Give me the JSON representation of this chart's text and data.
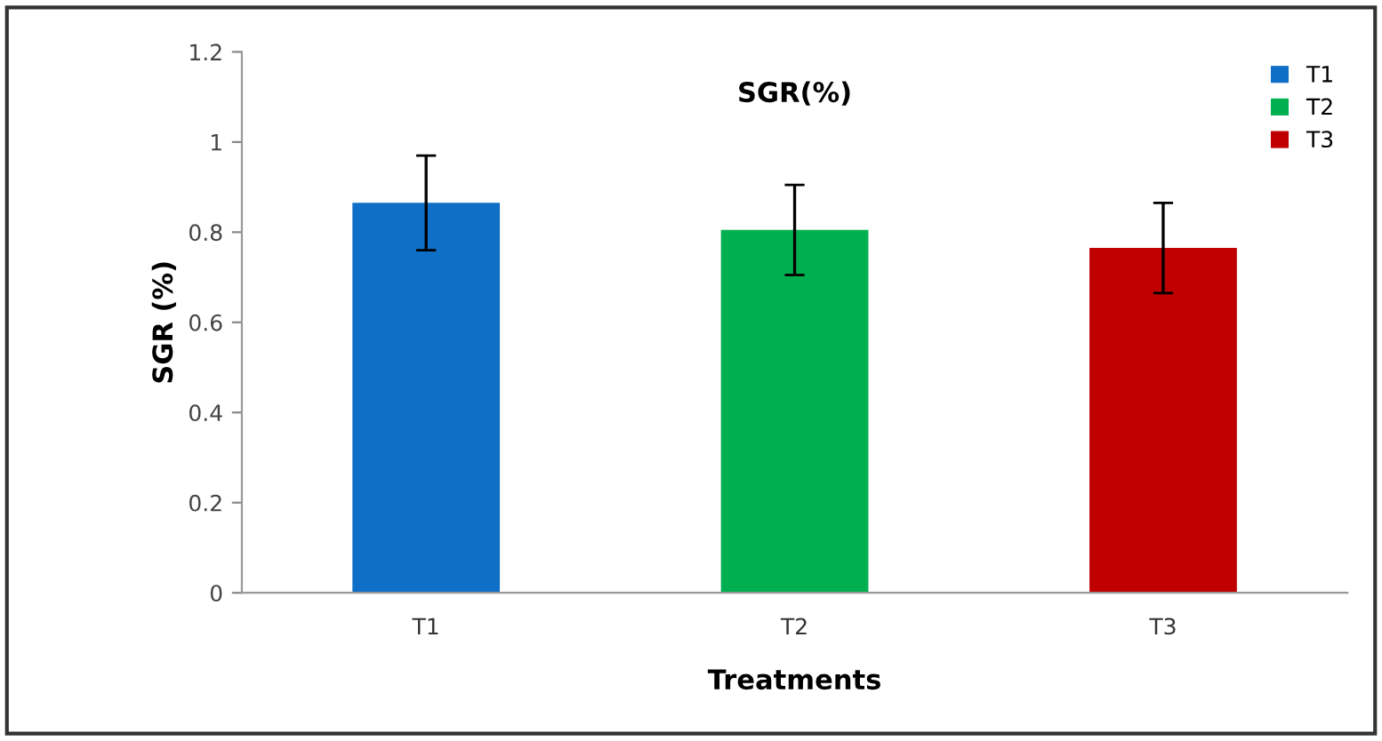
{
  "chart_data": {
    "type": "bar",
    "title": "SGR(%)",
    "xlabel": "Treatments",
    "ylabel": "SGR (%)",
    "categories": [
      "T1",
      "T2",
      "T3"
    ],
    "series": [
      {
        "name": "T1",
        "color": "#0f6fc6",
        "values": [
          0.865,
          null,
          null
        ],
        "errors": [
          0.105,
          null,
          null
        ]
      },
      {
        "name": "T2",
        "color": "#00b050",
        "values": [
          null,
          0.805,
          null
        ],
        "errors": [
          null,
          0.1,
          null
        ]
      },
      {
        "name": "T3",
        "color": "#c00000",
        "values": [
          null,
          null,
          0.765
        ],
        "errors": [
          null,
          null,
          0.1
        ]
      }
    ],
    "ylim": [
      0,
      1.2
    ],
    "yticks": [
      0,
      0.2,
      0.4,
      0.6,
      0.8,
      1,
      1.2
    ],
    "grid": false,
    "legend": "top right"
  }
}
